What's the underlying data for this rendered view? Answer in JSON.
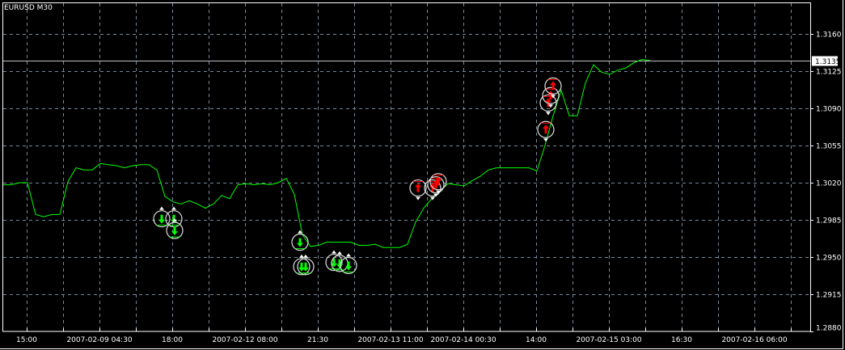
{
  "chart_title": "EURUSD M30",
  "colors": {
    "background": "#000000",
    "grid": "#778899",
    "price_line": "#00ff00",
    "axis": "#ffffff",
    "sell_marker": "#00ff00",
    "buy_marker": "#ff0000",
    "current_price_line": "#c0c0c0"
  },
  "chart_data": {
    "type": "line",
    "title": "EURUSD M30",
    "symbol": "EURUSD",
    "timeframe": "M30",
    "ylim": [
      1.288,
      1.3188
    ],
    "grid": true,
    "y_ticks": [
      "1.3160",
      "1.3125",
      "1.3090",
      "1.3055",
      "1.3020",
      "1.2985",
      "1.2950",
      "1.2915",
      "1.2880"
    ],
    "x_ticks": [
      "15:00",
      "2007-02-09 04:30",
      "18:00",
      "2007-02-12 08:00",
      "21:30",
      "2007-02-13 11:00",
      "2007-02-14 00:30",
      "14:00",
      "2007-02-15 03:00",
      "16:30",
      "2007-02-16 06:00"
    ],
    "current_price": "1.3135",
    "close": [
      1.3018,
      1.3018,
      1.302,
      1.302,
      1.299,
      1.2988,
      1.299,
      1.299,
      1.3021,
      1.3034,
      1.3032,
      1.3032,
      1.3038,
      1.3037,
      1.3036,
      1.3034,
      1.3036,
      1.3037,
      1.3037,
      1.3032,
      1.3007,
      1.3002,
      1.3,
      1.3003,
      1.3,
      1.2996,
      1.3,
      1.3008,
      1.3005,
      1.3018,
      1.3019,
      1.3018,
      1.3019,
      1.3018,
      1.302,
      1.3024,
      1.3009,
      1.2971,
      1.296,
      1.2961,
      1.2964,
      1.2964,
      1.2964,
      1.2964,
      1.2961,
      1.2961,
      1.2962,
      1.2959,
      1.2959,
      1.2959,
      1.2962,
      1.2983,
      1.2996,
      1.3005,
      1.3012,
      1.3019,
      1.3018,
      1.3017,
      1.3022,
      1.3026,
      1.3032,
      1.3034,
      1.3034,
      1.3034,
      1.3034,
      1.3034,
      1.3031,
      1.3055,
      1.3083,
      1.3107,
      1.3083,
      1.3083,
      1.3114,
      1.3131,
      1.3124,
      1.3122,
      1.3126,
      1.3128,
      1.3133,
      1.3136,
      1.3135
    ],
    "signals": [
      {
        "type": "sell",
        "bar": 19.6,
        "price": 1.2986
      },
      {
        "type": "sell",
        "bar": 21.1,
        "price": 1.2986
      },
      {
        "type": "sell",
        "bar": 21.2,
        "price": 1.2975
      },
      {
        "type": "sell",
        "bar": 36.7,
        "price": 1.2964
      },
      {
        "type": "sell",
        "bar": 36.9,
        "price": 1.2941
      },
      {
        "type": "sell",
        "bar": 37.4,
        "price": 1.2941
      },
      {
        "type": "sell",
        "bar": 40.9,
        "price": 1.2945
      },
      {
        "type": "sell",
        "bar": 41.6,
        "price": 1.2944
      },
      {
        "type": "sell",
        "bar": 42.7,
        "price": 1.2942
      },
      {
        "type": "buy",
        "bar": 51.3,
        "price": 1.3015
      },
      {
        "type": "buy",
        "bar": 53.1,
        "price": 1.3015
      },
      {
        "type": "buy",
        "bar": 53.5,
        "price": 1.3018
      },
      {
        "type": "buy",
        "bar": 53.8,
        "price": 1.3021
      },
      {
        "type": "buy",
        "bar": 67.1,
        "price": 1.307
      },
      {
        "type": "buy",
        "bar": 67.4,
        "price": 1.3095
      },
      {
        "type": "buy",
        "bar": 67.7,
        "price": 1.3102
      },
      {
        "type": "buy",
        "bar": 68.0,
        "price": 1.3111
      }
    ]
  }
}
